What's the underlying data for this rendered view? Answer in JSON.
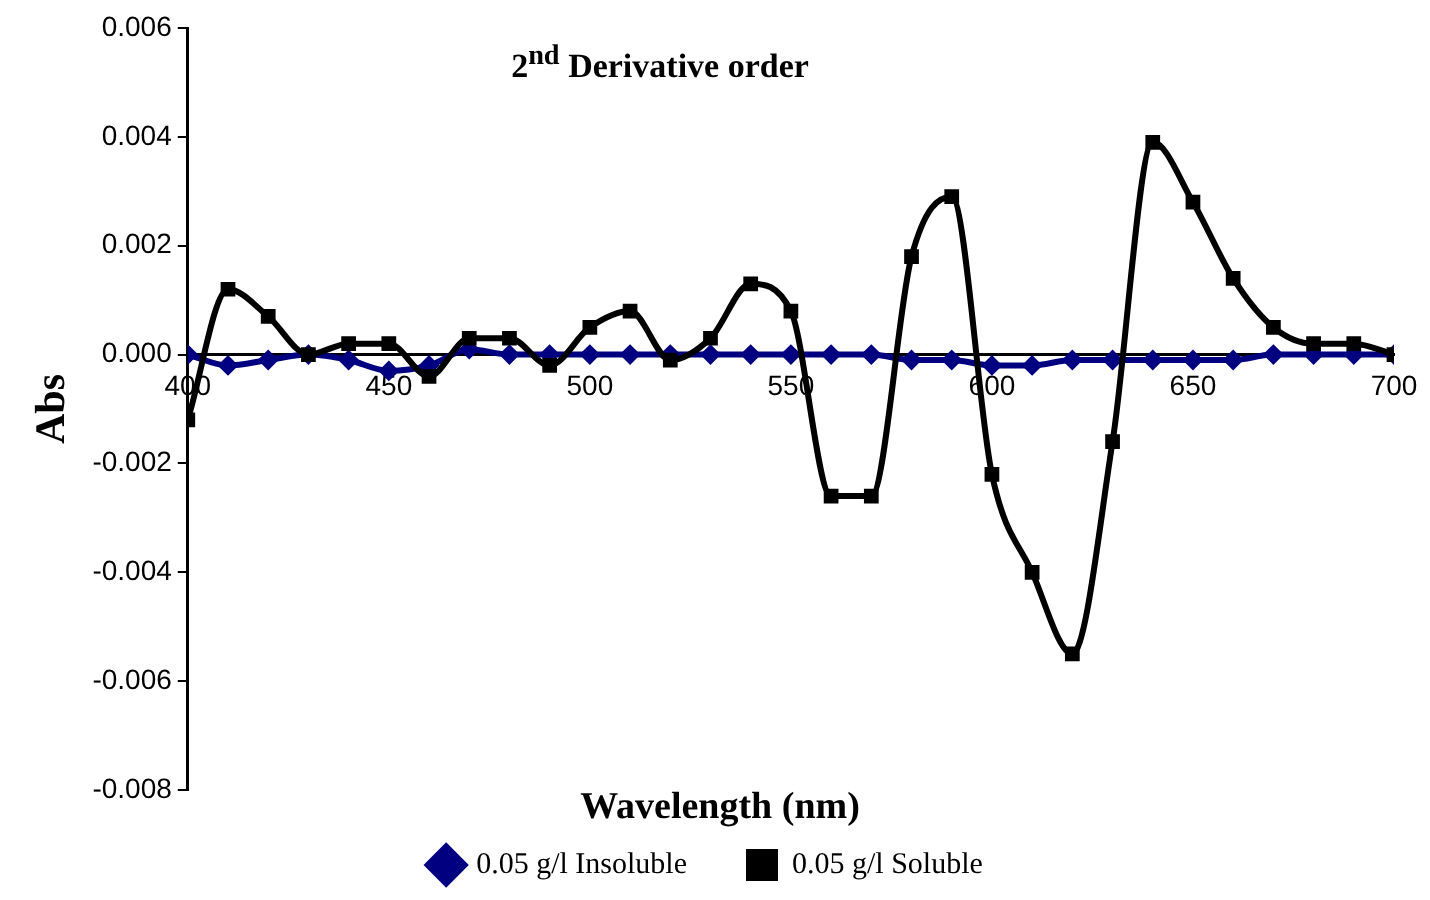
{
  "chart_data": {
    "type": "line",
    "title": "2$^{nd}$ Derivative order",
    "xlabel": "Wavelength (nm)",
    "ylabel": "Abs",
    "x": [
      400,
      410,
      420,
      430,
      440,
      450,
      460,
      470,
      480,
      490,
      500,
      510,
      520,
      530,
      540,
      550,
      560,
      570,
      580,
      590,
      600,
      610,
      620,
      630,
      640,
      650,
      660,
      670,
      680,
      690,
      700
    ],
    "xlim": [
      400,
      700
    ],
    "xticks": [
      400,
      450,
      500,
      550,
      600,
      650,
      700
    ],
    "ylim": [
      -0.008,
      0.006
    ],
    "yticks": [
      {
        "value": -0.008,
        "label": "-0.008"
      },
      {
        "value": -0.006,
        "label": "-0.006"
      },
      {
        "value": -0.004,
        "label": "-0.004"
      },
      {
        "value": -0.002,
        "label": "-0.002"
      },
      {
        "value": 0,
        "label": "0.000"
      },
      {
        "value": 0.002,
        "label": "0.002"
      },
      {
        "value": 0.004,
        "label": "0.004"
      },
      {
        "value": 0.006,
        "label": "0.006"
      }
    ],
    "grid": false,
    "legend": "bottom",
    "line_style": "solid",
    "series": [
      {
        "name": "0.05 g/l Insoluble",
        "color": "#000080",
        "marker": "diamond",
        "values": [
          0,
          -0.0002,
          -0.0001,
          0,
          -0.0001,
          -0.0003,
          -0.0002,
          0.0001,
          0,
          0,
          0,
          0,
          0,
          0,
          0,
          0,
          0,
          0,
          -0.0001,
          -0.0001,
          -0.0002,
          -0.0002,
          -0.0001,
          -0.0001,
          -0.0001,
          -0.0001,
          -0.0001,
          0,
          0,
          0,
          0
        ]
      },
      {
        "name": "0.05 g/l Soluble",
        "color": "#000000",
        "marker": "square",
        "values": [
          -0.0012,
          0.0012,
          0.0007,
          0,
          0.0002,
          0.0002,
          -0.0004,
          0.0003,
          0.0003,
          -0.0002,
          0.0005,
          0.0008,
          -0.0001,
          0.0003,
          0.0013,
          0.0008,
          -0.0026,
          -0.0026,
          0.0018,
          0.0029,
          -0.0022,
          -0.004,
          -0.0055,
          -0.0016,
          0.0039,
          0.0028,
          0.0014,
          0.0005,
          0.0002,
          0.0002,
          0
        ]
      }
    ]
  }
}
